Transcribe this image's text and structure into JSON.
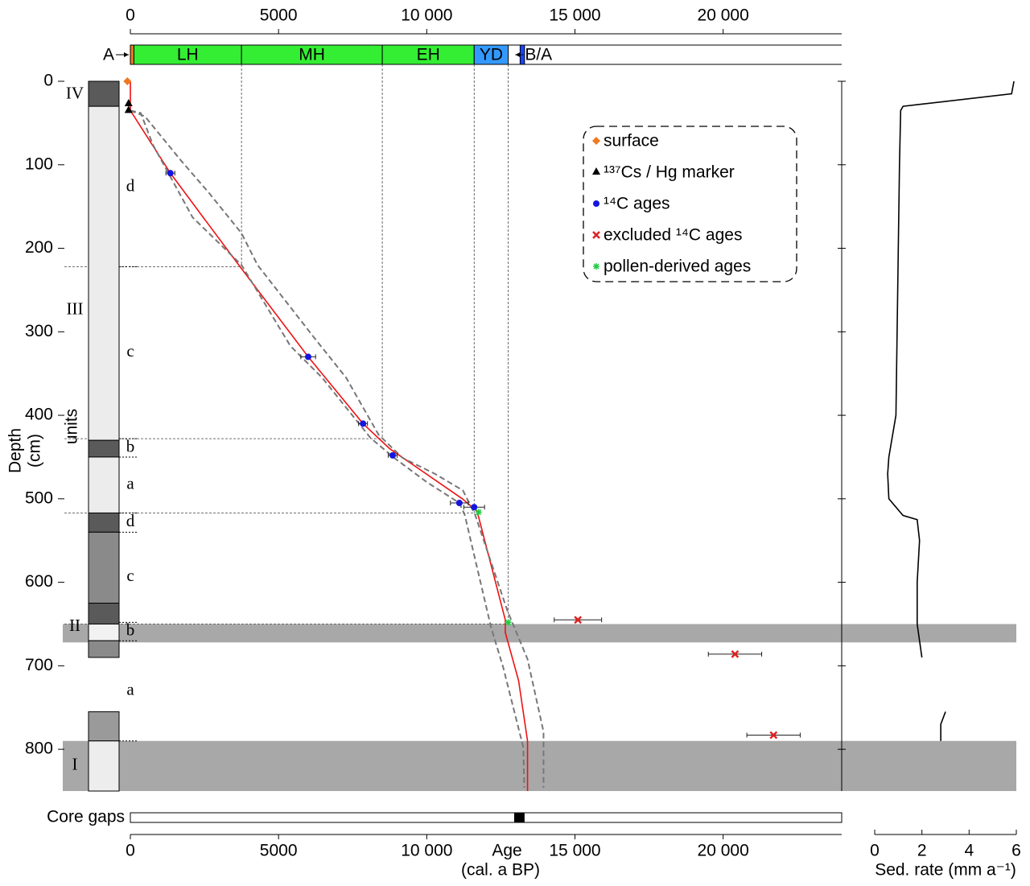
{
  "chart_data": [
    {
      "type": "line",
      "x_label": "Age",
      "x_label_2": "(cal. a BP)",
      "y_label": "Depth",
      "y_label_2": "(cm)",
      "units_label": "units",
      "xlim": [
        0,
        24000
      ],
      "xticks": [
        0,
        5000,
        {
          "value": 10000,
          "label": "10 000"
        },
        {
          "value": 15000,
          "label": "15 000"
        },
        {
          "value": 20000,
          "label": "20 000"
        }
      ],
      "ylim": [
        0,
        850
      ],
      "yticks": [
        0,
        100,
        200,
        300,
        400,
        500,
        600,
        700,
        800
      ],
      "legend": "upper right",
      "series": [
        {
          "color": "#ee1111",
          "style": "solid",
          "x": [
            0,
            0,
            1350,
            2500,
            3700,
            6000,
            7850,
            8750,
            11200,
            11700,
            12650,
            12650,
            13100,
            13400,
            13400
          ],
          "y": [
            0,
            35,
            110,
            165,
            222,
            330,
            410,
            440,
            500,
            515,
            645,
            660,
            718,
            790,
            850
          ]
        },
        {
          "color": "#777777",
          "style": "dashed",
          "x": [
            0,
            350,
            760,
            2100,
            3750,
            5400,
            6470,
            8100,
            8900,
            10000,
            11100,
            11280,
            12170,
            12580,
            13260,
            13290
          ],
          "y": [
            35,
            38,
            76,
            163,
            220,
            317,
            355,
            427,
            451,
            480,
            505,
            519,
            654,
            702,
            798,
            846
          ]
        },
        {
          "color": "#777777",
          "style": "dashed",
          "x": [
            0,
            490,
            1710,
            2660,
            3750,
            4290,
            6200,
            7280,
            8370,
            9180,
            10270,
            11220,
            11630,
            12720,
            13400,
            13940,
            13940
          ],
          "y": [
            35,
            42,
            95,
            134,
            182,
            220,
            307,
            355,
            423,
            451,
            470,
            490,
            519,
            634,
            692,
            779,
            846
          ]
        },
        {
          "name": "surface",
          "color": "#f07820",
          "marker": "diamond",
          "x": [
            -100
          ],
          "y": [
            0
          ]
        },
        {
          "name": "¹³⁷Cs / Hg marker",
          "color": "#000000",
          "marker": "triangle",
          "x": [
            -60,
            -60
          ],
          "y": [
            27,
            35
          ]
        },
        {
          "name": "¹⁴C ages",
          "color": "#1515e0",
          "marker": "circle",
          "x": [
            1350,
            6000,
            7850,
            8850,
            11100,
            11600
          ],
          "y": [
            110,
            330,
            410,
            448,
            505,
            510
          ],
          "xerr": [
            150,
            250,
            150,
            150,
            300,
            350
          ]
        },
        {
          "name": "excluded ¹⁴C ages",
          "color": "#e02020",
          "marker": "x",
          "x": [
            15100,
            20400,
            21700
          ],
          "y": [
            645,
            686,
            783
          ],
          "xerr": [
            800,
            900,
            900
          ]
        },
        {
          "name": "pollen-derived ages",
          "color": "#22cc44",
          "marker": "star",
          "x": [
            11750,
            12750
          ],
          "y": [
            516,
            648
          ]
        }
      ],
      "chronozones": [
        {
          "label": "A",
          "start": 0,
          "end": 120,
          "color": "#f07820"
        },
        {
          "label": "LH",
          "start": 120,
          "end": 3750,
          "color": "#33ee33"
        },
        {
          "label": "MH",
          "start": 3750,
          "end": 8500,
          "color": "#33ee33"
        },
        {
          "label": "EH",
          "start": 8500,
          "end": 11600,
          "color": "#33ee33"
        },
        {
          "label": "YD",
          "start": 11600,
          "end": 12750,
          "color": "#3399ff"
        },
        {
          "label": "B/A",
          "start": 13150,
          "end": 13300,
          "color": "#1a44ff"
        }
      ],
      "boundaries": [
        {
          "age": 3750,
          "depth": 222
        },
        {
          "age": 8500,
          "depth": 428
        },
        {
          "age": 11600,
          "depth": 517
        },
        {
          "age": 12750,
          "depth": 650
        }
      ],
      "shaded_depths": [
        [
          650,
          672
        ],
        [
          790,
          850
        ]
      ],
      "lithology": [
        {
          "top": 0,
          "bottom": 30,
          "color": "#5a5a5a"
        },
        {
          "top": 30,
          "bottom": 430,
          "color": "#ececec"
        },
        {
          "top": 430,
          "bottom": 450,
          "color": "#5a5a5a"
        },
        {
          "top": 450,
          "bottom": 517,
          "color": "#ececec"
        },
        {
          "top": 517,
          "bottom": 540,
          "color": "#5a5a5a"
        },
        {
          "top": 540,
          "bottom": 625,
          "color": "#8a8a8a"
        },
        {
          "top": 625,
          "bottom": 650,
          "color": "#5a5a5a"
        },
        {
          "top": 650,
          "bottom": 670,
          "color": "#f2f2f2"
        },
        {
          "top": 670,
          "bottom": 690,
          "color": "#8a8a8a"
        },
        {
          "top": 755,
          "bottom": 790,
          "color": "#9a9a9a"
        },
        {
          "top": 790,
          "bottom": 850,
          "color": "#ededed"
        }
      ],
      "units": [
        {
          "label": "IV",
          "top": 0,
          "bottom": 32
        },
        {
          "label": "III",
          "top": 32,
          "bottom": 517
        },
        {
          "label": "II",
          "top": 517,
          "bottom": 790
        },
        {
          "label": "I",
          "top": 790,
          "bottom": 850
        }
      ],
      "subunits": [
        {
          "label": "d",
          "top": 32,
          "bottom": 222
        },
        {
          "label": "c",
          "top": 222,
          "bottom": 428
        },
        {
          "label": "b",
          "top": 428,
          "bottom": 450
        },
        {
          "label": "a",
          "top": 450,
          "bottom": 517
        },
        {
          "label": "d",
          "top": 517,
          "bottom": 540
        },
        {
          "label": "c",
          "top": 540,
          "bottom": 648
        },
        {
          "label": "b",
          "top": 648,
          "bottom": 670
        },
        {
          "label": "a",
          "top": 670,
          "bottom": 790
        }
      ],
      "core_gaps_label": "Core gaps",
      "core_gaps": [
        [
          12950,
          13300
        ]
      ]
    },
    {
      "type": "line",
      "x_label": "Sed. rate (mm a⁻¹)",
      "xlim": [
        0,
        6
      ],
      "xticks": [
        0,
        2,
        4,
        6
      ],
      "ylim": [
        0,
        850
      ],
      "series": [
        {
          "color": "#000000",
          "x": [
            5.9,
            5.8,
            1.2,
            1.1,
            1.05,
            1.0,
            0.95,
            0.9,
            0.6,
            0.55,
            0.6,
            1.2,
            1.8,
            1.9,
            1.8,
            1.8,
            2.0,
            null,
            3.0,
            2.8,
            2.8
          ],
          "y": [
            0,
            15,
            30,
            35,
            100,
            200,
            300,
            400,
            450,
            470,
            500,
            520,
            525,
            550,
            600,
            650,
            690,
            null,
            755,
            770,
            790
          ]
        }
      ]
    }
  ]
}
